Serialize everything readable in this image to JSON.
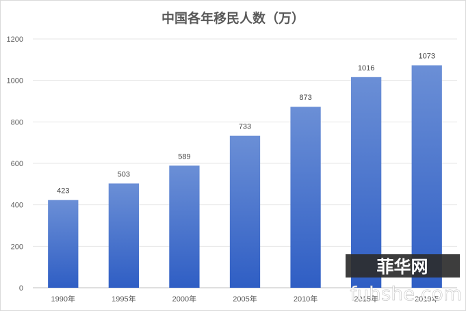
{
  "chart_data": {
    "type": "bar",
    "title": "中国各年移民人数（万）",
    "categories": [
      "1990年",
      "1995年",
      "2000年",
      "2005年",
      "2010年",
      "2015年",
      "2019年"
    ],
    "values": [
      423,
      503,
      589,
      733,
      873,
      1016,
      1073
    ],
    "data_labels": [
      "423",
      "503",
      "589",
      "733",
      "873",
      "1016",
      "1073"
    ],
    "y_ticks": [
      "0",
      "200",
      "400",
      "600",
      "800",
      "1000",
      "1200"
    ],
    "ylim": [
      0,
      1200
    ],
    "grid": true,
    "legend": "none",
    "bar_color_top": "#6b8fd6",
    "bar_color_bottom": "#2f5ec4"
  },
  "watermark": {
    "cjk": "菲华网",
    "latin": "fuhshe.com"
  }
}
